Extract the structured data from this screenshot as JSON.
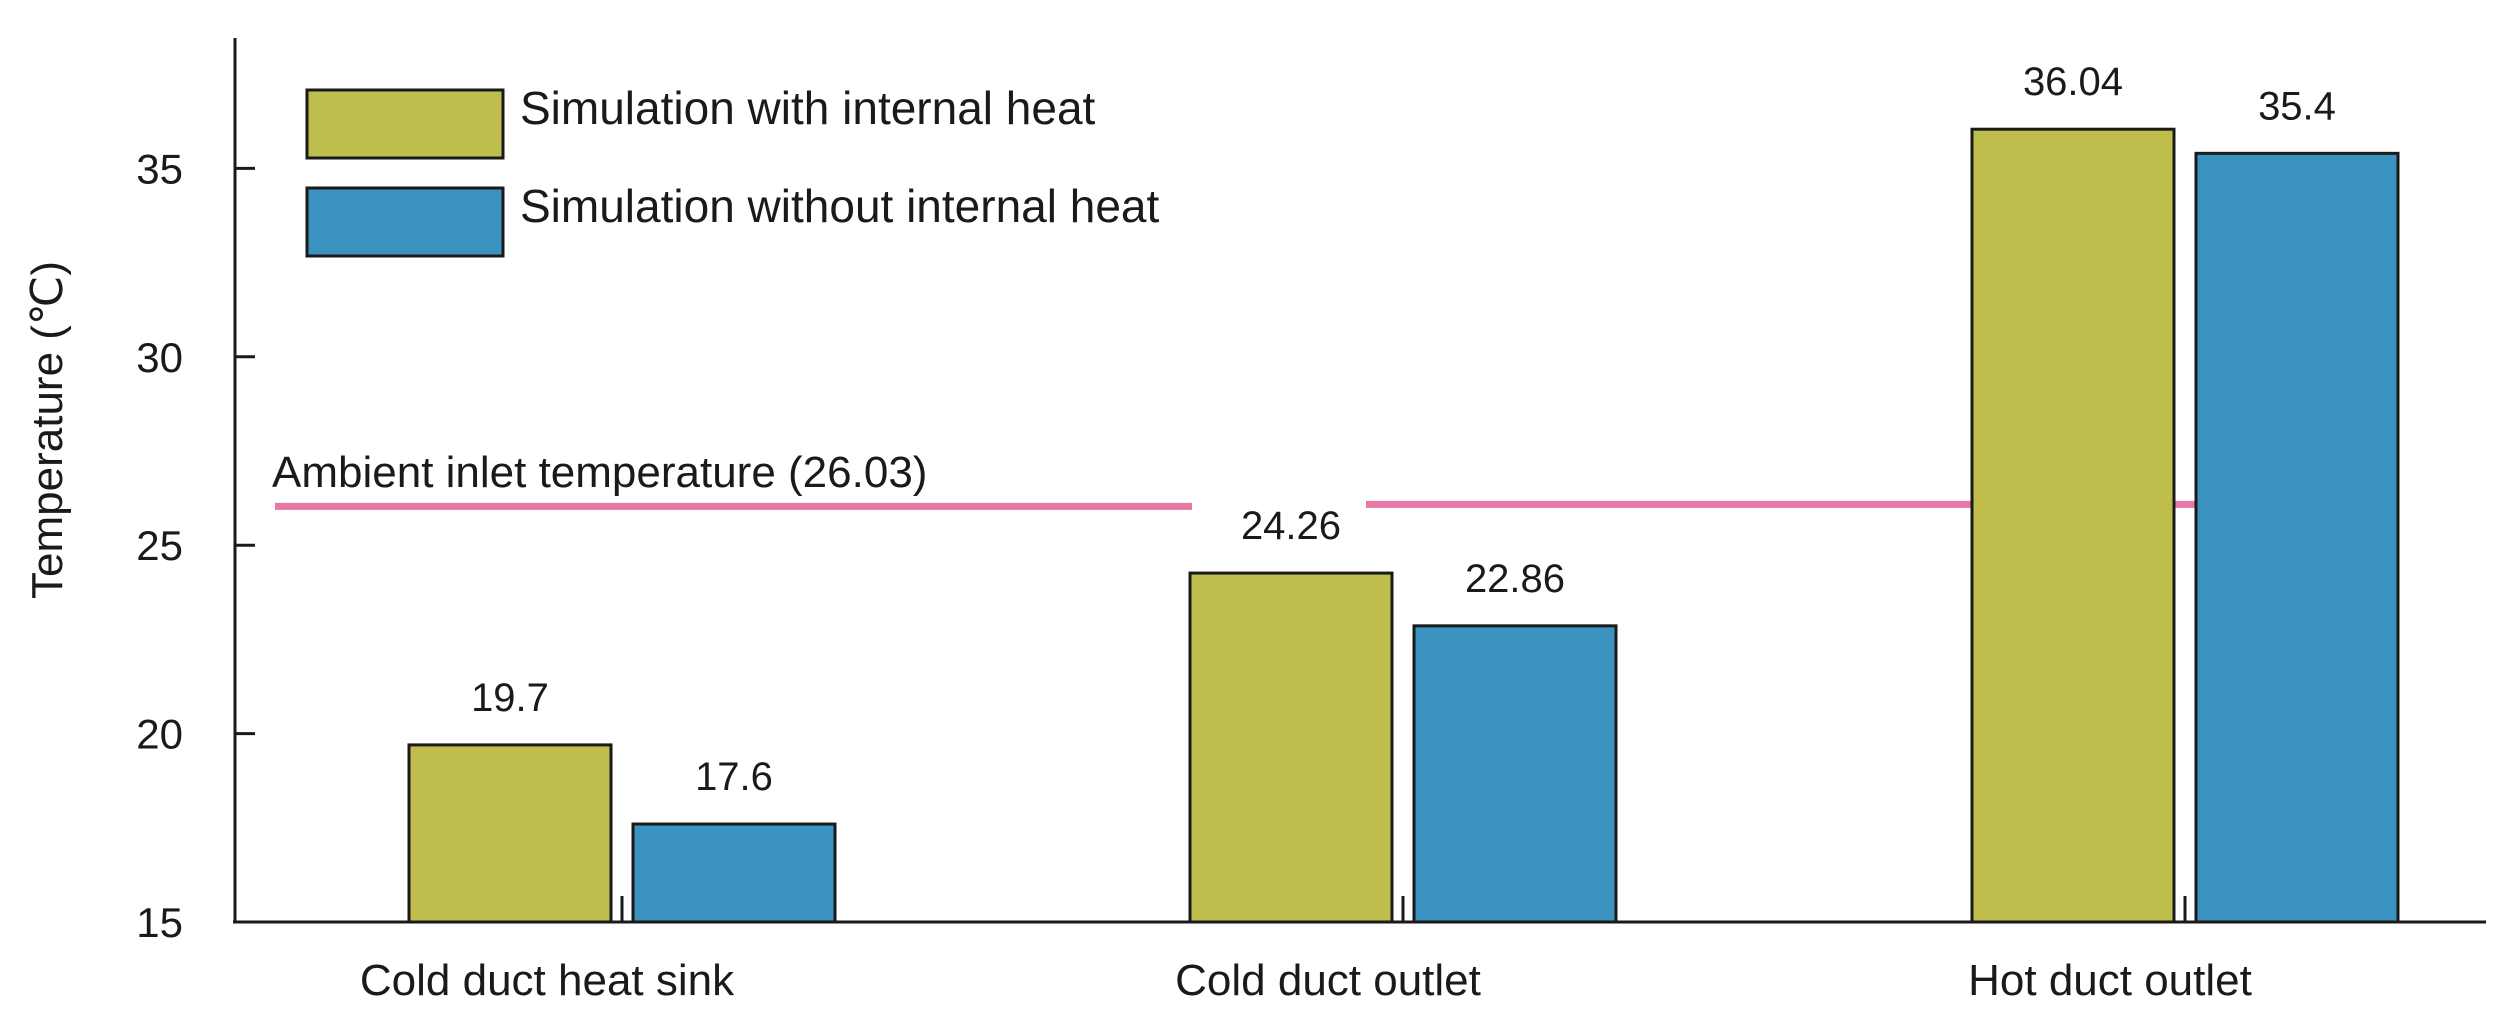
{
  "chart_data": {
    "type": "bar",
    "title": "",
    "xlabel": "",
    "ylabel": "Temperature (℃)",
    "ylim": [
      15,
      38.5
    ],
    "yticks": [
      15,
      20,
      25,
      30,
      35
    ],
    "grid": false,
    "legend_position": "top-left",
    "categories": [
      "Cold duct heat sink",
      "Cold duct outlet",
      "Hot duct outlet"
    ],
    "series": [
      {
        "name": "Simulation with internal heat",
        "color": "#bfbd4b",
        "values": [
          19.7,
          24.26,
          36.04
        ],
        "labels": [
          "19.7",
          "24.26",
          "36.04"
        ]
      },
      {
        "name": "Simulation without internal heat",
        "color": "#3a92c0",
        "values": [
          17.6,
          22.86,
          35.4
        ],
        "labels": [
          "17.6",
          "22.86",
          "35.4"
        ]
      }
    ],
    "reference_line": {
      "label": "Ambient inlet temperature (26.03)",
      "value": 26.03,
      "color": "#e877a5"
    }
  }
}
